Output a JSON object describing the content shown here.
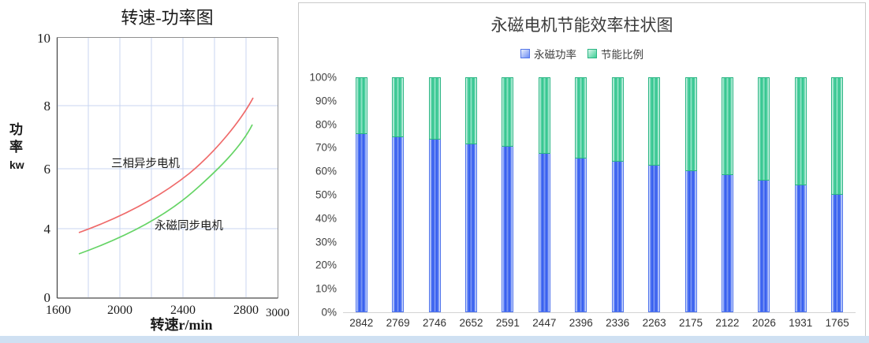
{
  "left_chart": {
    "title": "转速-功率图",
    "y_axis_label": [
      "功",
      "率",
      "kw"
    ],
    "x_axis_label": "转速r/min",
    "y_ticks": [
      "10",
      "8",
      "6",
      "4",
      "0"
    ],
    "x_ticks": [
      "1600",
      "2000",
      "2400",
      "2800",
      "3000"
    ],
    "series": [
      {
        "name": "三相异步电机",
        "color": "#ef6a6a"
      },
      {
        "name": "永磁同步电机",
        "color": "#66d466"
      }
    ]
  },
  "right_chart": {
    "title": "永磁电机节能效率柱状图",
    "legend": [
      {
        "label": "永磁功率",
        "color": "#4d72ec"
      },
      {
        "label": "节能比例",
        "color": "#2ab583"
      }
    ],
    "y_ticks": [
      "100%",
      "90%",
      "80%",
      "70%",
      "60%",
      "50%",
      "40%",
      "30%",
      "20%",
      "10%",
      "0%"
    ],
    "categories": [
      "2842",
      "2769",
      "2746",
      "2652",
      "2591",
      "2447",
      "2396",
      "2336",
      "2263",
      "2175",
      "2122",
      "2026",
      "1931",
      "1765"
    ],
    "blue_values": [
      76,
      74.5,
      73.5,
      71.5,
      70.5,
      67.5,
      65.5,
      64,
      62.5,
      60,
      58.5,
      56,
      54,
      50
    ],
    "green_values": [
      24,
      25.5,
      26.5,
      28.5,
      29.5,
      32.5,
      34.5,
      36,
      37.5,
      40,
      41.5,
      44,
      46,
      50
    ]
  },
  "chart_data": [
    {
      "type": "line",
      "title": "转速-功率图",
      "xlabel": "转速r/min",
      "ylabel": "功率kw",
      "xlim": [
        1600,
        3000
      ],
      "ylim": [
        0,
        10
      ],
      "x_ticks": [
        1600,
        2000,
        2400,
        2800,
        3000
      ],
      "y_ticks": [
        10,
        8,
        6,
        4,
        0
      ],
      "grid": true,
      "series": [
        {
          "name": "三相异步电机",
          "color": "#ef6a6a",
          "x": [
            1750,
            1900,
            2100,
            2300,
            2500,
            2700,
            2850
          ],
          "y": [
            4.1,
            4.5,
            5.1,
            5.8,
            6.6,
            7.5,
            8.2
          ]
        },
        {
          "name": "永磁同步电机",
          "color": "#66d466",
          "x": [
            1750,
            1900,
            2100,
            2300,
            2500,
            2700,
            2860
          ],
          "y": [
            3.0,
            3.4,
            4.0,
            4.7,
            5.6,
            6.6,
            7.4
          ]
        }
      ]
    },
    {
      "type": "bar",
      "subtype": "stacked",
      "title": "永磁电机节能效率柱状图",
      "categories": [
        2842,
        2769,
        2746,
        2652,
        2591,
        2447,
        2396,
        2336,
        2263,
        2175,
        2122,
        2026,
        1931,
        1765
      ],
      "series": [
        {
          "name": "永磁功率",
          "color": "#2a55ee",
          "values": [
            76,
            74.5,
            73.5,
            71.5,
            70.5,
            67.5,
            65.5,
            64,
            62.5,
            60,
            58.5,
            56,
            54,
            50
          ]
        },
        {
          "name": "节能比例",
          "color": "#27c288",
          "values": [
            24,
            25.5,
            26.5,
            28.5,
            29.5,
            32.5,
            34.5,
            36,
            37.5,
            40,
            41.5,
            44,
            46,
            50
          ]
        }
      ],
      "ylim": [
        0,
        100
      ],
      "y_tick_step": 10,
      "y_tick_format": "percent",
      "legend_position": "top",
      "grid": false
    }
  ],
  "colors": {
    "panel_border": "#c9c9c9",
    "bottom_strip": "#cfe0f2",
    "gridline_blue": "#c9d6f2",
    "bar_blue_border": "#4d72ec",
    "bar_green_border": "#2ab583",
    "red_line": "#ef6a6a",
    "green_line": "#66d466"
  }
}
